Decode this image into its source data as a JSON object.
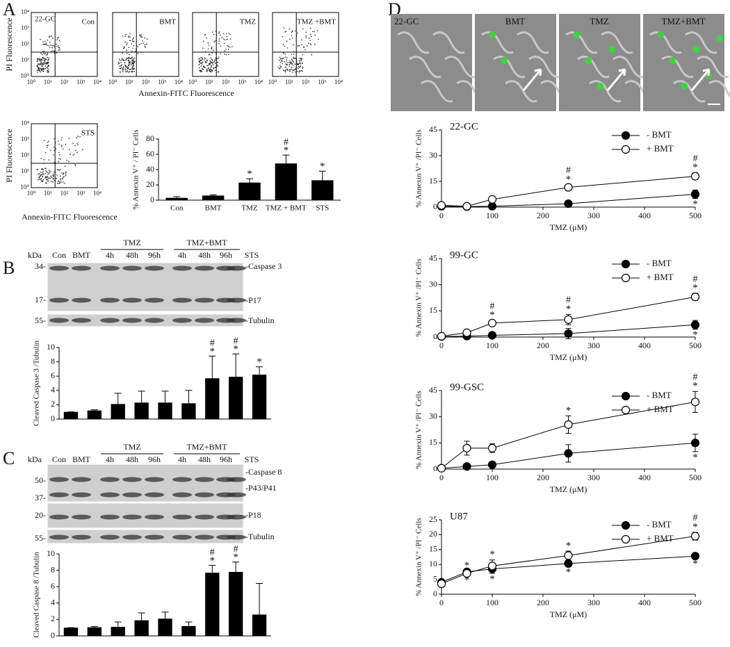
{
  "panel_labels": [
    "A",
    "B",
    "C",
    "D"
  ],
  "flow": {
    "cell_line": "22-GC",
    "plots": [
      "Con",
      "BMT",
      "TMZ",
      "TMZ +BMT",
      "STS"
    ],
    "ylabel": "PI Fluorescence",
    "xlabel": "Annexin-FITC Fluorescence",
    "ticks": [
      "10⁰",
      "10¹",
      "10²",
      "10³",
      "10⁴"
    ]
  },
  "blot_b": {
    "kda": "kDa",
    "lanes": [
      "Con",
      "BMT",
      "4h",
      "48h",
      "96h",
      "4h",
      "48h",
      "96h",
      "STS"
    ],
    "groups": [
      "TMZ",
      "TMZ+BMT"
    ],
    "markers": [
      "34-",
      "17-",
      "55-"
    ],
    "bands": [
      "-Caspase 3",
      "-P17",
      "-Tubulin"
    ]
  },
  "blot_c": {
    "kda": "kDa",
    "lanes": [
      "Con",
      "BMT",
      "4h",
      "48h",
      "96h",
      "4h",
      "48h",
      "96h",
      "STS"
    ],
    "groups": [
      "TMZ",
      "TMZ+BMT"
    ],
    "markers": [
      "50-",
      "37-",
      "20-",
      "55-"
    ],
    "bands": [
      "-Caspase 8",
      "-P43/P41",
      "-P18",
      "-Tubulin"
    ]
  },
  "images": {
    "labels": [
      "22-GC",
      "BMT",
      "TMZ",
      "TMZ+BMT"
    ]
  },
  "chart_data": [
    {
      "type": "bar",
      "ylabel": "% Annexin V⁺ / PI⁻ Cells",
      "categories": [
        "Con",
        "BMT",
        "TMZ",
        "TMZ + BMT",
        "STS"
      ],
      "values": [
        3,
        6,
        23,
        48,
        26
      ],
      "errors": [
        1.5,
        1,
        5,
        11,
        12
      ],
      "stars": [
        null,
        null,
        "*",
        "*",
        "*"
      ],
      "hashes": [
        null,
        null,
        null,
        "#",
        null
      ],
      "color": "#000000",
      "ylim": [
        0,
        80
      ],
      "yticks": [
        0,
        20,
        40,
        60,
        80
      ]
    },
    {
      "type": "bar",
      "ylabel": "Cleaved Caspase 3 /Tubulin",
      "categories": [
        null,
        null,
        null,
        null,
        null,
        null,
        null,
        null,
        null
      ],
      "values": [
        1,
        1.2,
        2.1,
        2.3,
        2.3,
        2.2,
        5.7,
        5.9,
        6.2
      ],
      "errors": [
        0,
        0.1,
        1.5,
        1.6,
        1.6,
        1.8,
        3.1,
        3.2,
        1.1
      ],
      "stars": [
        null,
        null,
        null,
        null,
        null,
        null,
        "*",
        "*",
        "*"
      ],
      "hashes": [
        null,
        null,
        null,
        null,
        null,
        null,
        "#",
        "#",
        null
      ],
      "color": "#000000",
      "ylim": [
        0,
        10
      ],
      "yticks": [
        0,
        2,
        4,
        6,
        8,
        10
      ]
    },
    {
      "type": "bar",
      "ylabel": "Cleaved Caspase 8 /Tubulin",
      "categories": [
        null,
        null,
        null,
        null,
        null,
        null,
        null,
        null,
        null
      ],
      "values": [
        1,
        1.05,
        1.1,
        1.9,
        2.1,
        1.2,
        7.7,
        7.8,
        2.6
      ],
      "errors": [
        0,
        0.1,
        0.6,
        0.9,
        0.8,
        0.5,
        0.9,
        1.2,
        3.8
      ],
      "stars": [
        null,
        null,
        null,
        null,
        null,
        null,
        "*",
        "*",
        null
      ],
      "hashes": [
        null,
        null,
        null,
        null,
        null,
        null,
        "#",
        "#",
        null
      ],
      "color": "#000000",
      "ylim": [
        0,
        10
      ],
      "yticks": [
        0,
        2,
        4,
        6,
        8,
        10
      ]
    },
    {
      "type": "line",
      "title": "22-GC",
      "xlabel": "TMZ (μM)",
      "ylabel": "% Annexin V⁺ /PI⁻ Cells",
      "legend": "upper right",
      "x": [
        0,
        50,
        100,
        250,
        500
      ],
      "xlim": [
        0,
        500
      ],
      "xticks": [
        0,
        100,
        200,
        300,
        400,
        500
      ],
      "ylim": [
        0,
        45
      ],
      "yticks": [
        0,
        15,
        30,
        45
      ],
      "series": [
        {
          "name": "- BMT",
          "color": "#000000",
          "values": [
            0.5,
            0.3,
            0.5,
            2,
            7.5
          ],
          "errors": [
            0.5,
            0.3,
            0.5,
            0.8,
            2.5
          ],
          "stars": [
            null,
            null,
            null,
            null,
            "*"
          ],
          "hashes": [
            null,
            null,
            null,
            null,
            null
          ]
        },
        {
          "name": "+ BMT",
          "color": "#ffffff",
          "values": [
            1,
            0.5,
            4.5,
            11.5,
            18
          ],
          "errors": [
            0.5,
            0.3,
            1,
            1.5,
            2
          ],
          "stars": [
            null,
            null,
            null,
            "*",
            "*"
          ],
          "hashes": [
            null,
            null,
            null,
            "#",
            "#"
          ]
        }
      ]
    },
    {
      "type": "line",
      "title": "99-GC",
      "xlabel": "TMZ (μM)",
      "ylabel": "% Annexin V⁺ /PI⁻ Cells",
      "legend": "upper right",
      "x": [
        0,
        50,
        100,
        250,
        500
      ],
      "xlim": [
        0,
        500
      ],
      "xticks": [
        0,
        100,
        200,
        300,
        400,
        500
      ],
      "ylim": [
        0,
        45
      ],
      "yticks": [
        0,
        15,
        30,
        45
      ],
      "series": [
        {
          "name": "- BMT",
          "color": "#000000",
          "values": [
            0.3,
            0.5,
            1,
            2,
            7
          ],
          "errors": [
            0.3,
            0.3,
            0.5,
            3,
            2.5
          ],
          "stars": [
            null,
            null,
            null,
            null,
            "*"
          ],
          "hashes": [
            null,
            null,
            null,
            null,
            null
          ]
        },
        {
          "name": "+ BMT",
          "color": "#ffffff",
          "values": [
            0.5,
            2.5,
            8,
            10,
            23
          ],
          "errors": [
            0.3,
            0.8,
            1.5,
            3,
            2
          ],
          "stars": [
            null,
            null,
            "*",
            "*",
            "*"
          ],
          "hashes": [
            null,
            null,
            "#",
            "#",
            "#"
          ]
        }
      ]
    },
    {
      "type": "line",
      "title": "99-GSC",
      "xlabel": "TMZ (μM)",
      "ylabel": "% Annexin V⁺ /PI⁻ Cells",
      "legend": "upper right",
      "x": [
        0,
        50,
        100,
        250,
        500
      ],
      "xlim": [
        0,
        500
      ],
      "xticks": [
        0,
        100,
        200,
        300,
        400,
        500
      ],
      "ylim": [
        0,
        45
      ],
      "yticks": [
        0,
        15,
        30,
        45
      ],
      "series": [
        {
          "name": "- BMT",
          "color": "#000000",
          "values": [
            0.5,
            1.5,
            2.5,
            9,
            15
          ],
          "errors": [
            0.3,
            0.5,
            0.5,
            5,
            5
          ],
          "stars": [
            null,
            null,
            null,
            null,
            "*"
          ],
          "hashes": [
            null,
            null,
            null,
            null,
            null
          ]
        },
        {
          "name": "+ BMT",
          "color": "#ffffff",
          "values": [
            0.5,
            12,
            12,
            25.5,
            38.5
          ],
          "errors": [
            0.3,
            4,
            2.5,
            5,
            6
          ],
          "stars": [
            null,
            null,
            null,
            "*",
            "*"
          ],
          "hashes": [
            null,
            null,
            null,
            null,
            "#"
          ]
        }
      ]
    },
    {
      "type": "line",
      "title": "U87",
      "xlabel": "TMZ (μM)",
      "ylabel": "% Annexin V⁺ /PI⁻ Cells",
      "legend": "upper right",
      "x": [
        0,
        50,
        100,
        250,
        500
      ],
      "xlim": [
        0,
        500
      ],
      "xticks": [
        0,
        100,
        200,
        300,
        400,
        500
      ],
      "ylim": [
        0,
        25
      ],
      "yticks": [
        0,
        5,
        10,
        15,
        20,
        25
      ],
      "series": [
        {
          "name": "- BMT",
          "color": "#000000",
          "values": [
            4,
            7.5,
            8.5,
            10.3,
            12.8
          ],
          "errors": [
            0.5,
            0.8,
            1.5,
            1,
            0.7
          ],
          "stars": [
            null,
            "*",
            "*",
            "*",
            "*"
          ],
          "hashes": [
            null,
            null,
            null,
            null,
            null
          ]
        },
        {
          "name": "+ BMT",
          "color": "#ffffff",
          "values": [
            3.5,
            7,
            9.5,
            13,
            19.5
          ],
          "errors": [
            0.5,
            0.8,
            2,
            1.5,
            1.3
          ],
          "stars": [
            null,
            "*",
            "*",
            "*",
            "*"
          ],
          "hashes": [
            null,
            null,
            null,
            null,
            "#"
          ]
        }
      ]
    }
  ]
}
